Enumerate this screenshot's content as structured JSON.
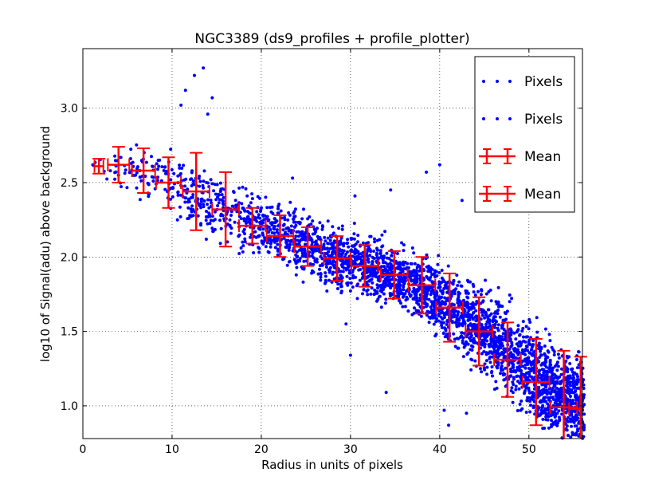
{
  "chart_data": {
    "type": "scatter",
    "title": "NGC3389 (ds9_profiles + profile_plotter)",
    "xlabel": "Radius in units of pixels",
    "ylabel": "log10 of Signal(adu) above background",
    "xlim": [
      0,
      56
    ],
    "ylim": [
      0.78,
      3.4
    ],
    "x_ticks": [
      0,
      10,
      20,
      30,
      40,
      50
    ],
    "y_ticks": [
      1.0,
      1.5,
      2.0,
      2.5,
      3.0
    ],
    "x_tick_labels": [
      "0",
      "10",
      "20",
      "30",
      "40",
      "50"
    ],
    "y_tick_labels": [
      "1.0",
      "1.5",
      "2.0",
      "2.5",
      "3.0"
    ],
    "grid": true,
    "legend_position": "top-right",
    "legend": [
      "Pixels",
      "Pixels",
      "Mean",
      "Mean"
    ],
    "colors": {
      "pixels": "#0000ff",
      "mean": "#ff0000"
    },
    "series": [
      {
        "name": "Pixels",
        "kind": "scatter",
        "trend": {
          "x": [
            0.5,
            4,
            8,
            12,
            16,
            20,
            24,
            28,
            32,
            36,
            40,
            44,
            48,
            52,
            56
          ],
          "y_center": [
            2.62,
            2.62,
            2.54,
            2.42,
            2.3,
            2.2,
            2.1,
            2.0,
            1.93,
            1.86,
            1.7,
            1.55,
            1.35,
            1.15,
            1.0
          ],
          "y_spread": [
            0.03,
            0.12,
            0.16,
            0.2,
            0.2,
            0.18,
            0.18,
            0.17,
            0.17,
            0.17,
            0.2,
            0.23,
            0.25,
            0.27,
            0.28
          ]
        },
        "notable_points": [
          {
            "x": 13.5,
            "y": 3.27
          },
          {
            "x": 12.5,
            "y": 3.22
          },
          {
            "x": 11.5,
            "y": 3.12
          },
          {
            "x": 14.5,
            "y": 3.07
          },
          {
            "x": 11.0,
            "y": 3.02
          },
          {
            "x": 14.0,
            "y": 2.96
          },
          {
            "x": 40.0,
            "y": 2.62
          },
          {
            "x": 38.5,
            "y": 2.57
          },
          {
            "x": 42.5,
            "y": 2.38
          },
          {
            "x": 34.5,
            "y": 2.45
          },
          {
            "x": 30.5,
            "y": 2.41
          },
          {
            "x": 23.5,
            "y": 2.53
          },
          {
            "x": 29.5,
            "y": 1.55
          },
          {
            "x": 34.0,
            "y": 1.09
          },
          {
            "x": 40.5,
            "y": 0.97
          },
          {
            "x": 43.0,
            "y": 0.95
          },
          {
            "x": 41.0,
            "y": 0.87
          },
          {
            "x": 30.0,
            "y": 1.34
          }
        ]
      },
      {
        "name": "Mean",
        "kind": "errorbar",
        "x": [
          1.8,
          4.0,
          6.8,
          9.6,
          12.7,
          16.0,
          19.0,
          22.1,
          25.2,
          28.5,
          31.6,
          34.9,
          38.0,
          41.1,
          44.4,
          47.6,
          50.8,
          53.9,
          55.8
        ],
        "y": [
          2.61,
          2.62,
          2.58,
          2.5,
          2.44,
          2.32,
          2.21,
          2.14,
          2.07,
          1.99,
          1.94,
          1.88,
          1.81,
          1.66,
          1.5,
          1.31,
          1.16,
          0.99,
          0.98
        ],
        "xerr": [
          0.5,
          1.2,
          1.3,
          1.4,
          1.5,
          1.5,
          1.5,
          1.5,
          1.5,
          1.5,
          1.5,
          1.5,
          1.5,
          1.5,
          1.5,
          1.5,
          1.5,
          1.5,
          1.3
        ],
        "yerr": [
          0.05,
          0.12,
          0.15,
          0.17,
          0.26,
          0.25,
          0.12,
          0.14,
          0.13,
          0.15,
          0.14,
          0.16,
          0.19,
          0.23,
          0.23,
          0.25,
          0.29,
          0.38,
          0.35
        ]
      }
    ]
  }
}
